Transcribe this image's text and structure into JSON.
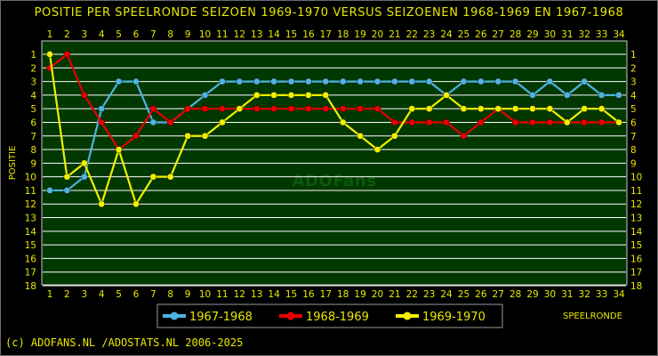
{
  "chart_data": {
    "type": "line",
    "title": "POSITIE PER SPEELRONDE SEIZOEN 1969-1970 VERSUS SEIZOENEN 1968-1969 EN 1967-1968",
    "xlabel": "SPEELRONDE",
    "ylabel": "POSITIE",
    "watermark": "ADOFans",
    "x": [
      1,
      2,
      3,
      4,
      5,
      6,
      7,
      8,
      9,
      10,
      11,
      12,
      13,
      14,
      15,
      16,
      17,
      18,
      19,
      20,
      21,
      22,
      23,
      24,
      25,
      26,
      27,
      28,
      29,
      30,
      31,
      32,
      33,
      34
    ],
    "xlim": [
      1,
      34
    ],
    "ylim": [
      18,
      1
    ],
    "y_inverted": true,
    "grid": true,
    "legend_position": "bottom-left",
    "series": [
      {
        "name": "1967-1968",
        "color": "#4fb3e0",
        "values": [
          11,
          11,
          10,
          5,
          3,
          3,
          6,
          6,
          5,
          4,
          3,
          3,
          3,
          3,
          3,
          3,
          3,
          3,
          3,
          3,
          3,
          3,
          3,
          4,
          3,
          3,
          3,
          3,
          4,
          3,
          4,
          3,
          4,
          4
        ]
      },
      {
        "name": "1968-1969",
        "color": "#e80000",
        "values": [
          2,
          1,
          4,
          6,
          8,
          7,
          5,
          6,
          5,
          5,
          5,
          5,
          5,
          5,
          5,
          5,
          5,
          5,
          5,
          5,
          6,
          6,
          6,
          6,
          7,
          6,
          5,
          6,
          6,
          6,
          6,
          6,
          6,
          6
        ]
      },
      {
        "name": "1969-1970",
        "color": "#f0f000",
        "values": [
          1,
          10,
          9,
          12,
          8,
          12,
          10,
          10,
          7,
          7,
          6,
          5,
          4,
          4,
          4,
          4,
          4,
          6,
          7,
          8,
          7,
          5,
          5,
          4,
          5,
          5,
          5,
          5,
          5,
          5,
          6,
          5,
          5,
          6
        ]
      }
    ]
  },
  "footer": "(c) ADOFANS.NL /ADOSTATS.NL 2006-2025"
}
